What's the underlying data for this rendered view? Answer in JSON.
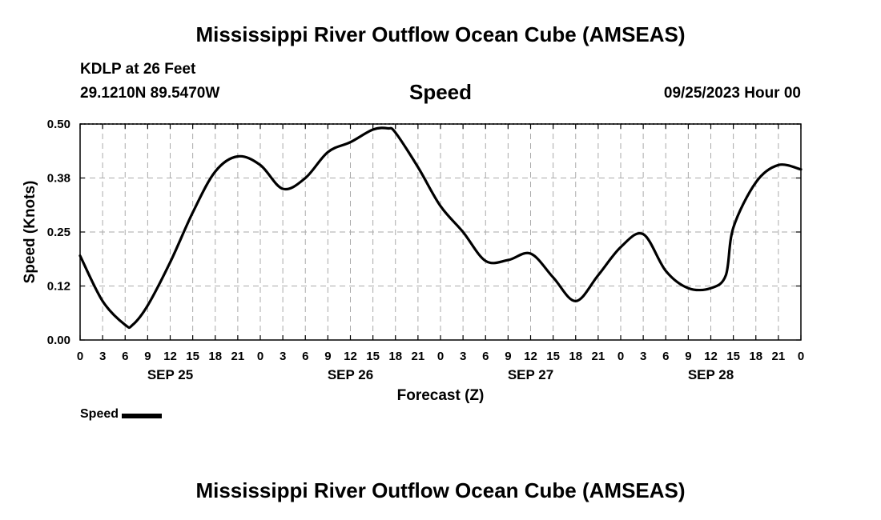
{
  "header": {
    "title": "Mississippi River Outflow Ocean Cube (AMSEAS)",
    "station": "KDLP at 26 Feet",
    "coords": "29.1210N  89.5470W",
    "subtitle": "Speed",
    "run_time": "09/25/2023 Hour 00"
  },
  "footer": {
    "title": "Mississippi River Outflow Ocean Cube (AMSEAS)"
  },
  "chart_data": {
    "type": "line",
    "title": "Speed",
    "xlabel": "Forecast (Z)",
    "ylabel": "Speed (Knots)",
    "xlim": [
      0,
      96
    ],
    "ylim": [
      0,
      0.5
    ],
    "y_ticks": [
      0.0,
      0.125,
      0.25,
      0.375,
      0.5
    ],
    "y_tick_labels": [
      "0.00",
      "0.12",
      "0.25",
      "0.38",
      "0.50"
    ],
    "x_tick_labels": [
      "0",
      "3",
      "6",
      "9",
      "12",
      "15",
      "18",
      "21",
      "0",
      "3",
      "6",
      "9",
      "12",
      "15",
      "18",
      "21",
      "0",
      "3",
      "6",
      "9",
      "12",
      "15",
      "18",
      "21",
      "0",
      "3",
      "6",
      "9",
      "12",
      "15",
      "18",
      "21",
      "0"
    ],
    "day_labels": [
      {
        "label": "SEP 25",
        "hour": 12
      },
      {
        "label": "SEP 26",
        "hour": 36
      },
      {
        "label": "SEP 27",
        "hour": 60
      },
      {
        "label": "SEP 28",
        "hour": 84
      }
    ],
    "grid": true,
    "legend": "bottom-left",
    "series": [
      {
        "name": "Speed",
        "color": "#000000",
        "x": [
          0,
          3,
          6,
          7,
          9,
          12,
          15,
          18,
          21,
          24,
          27,
          30,
          33,
          36,
          39,
          41,
          42,
          45,
          48,
          51,
          54,
          57,
          60,
          63,
          66,
          69,
          72,
          75,
          78,
          81,
          84,
          86,
          87,
          90,
          93,
          96
        ],
        "y": [
          0.195,
          0.09,
          0.035,
          0.035,
          0.08,
          0.18,
          0.295,
          0.39,
          0.425,
          0.405,
          0.35,
          0.375,
          0.435,
          0.458,
          0.487,
          0.49,
          0.48,
          0.4,
          0.31,
          0.25,
          0.183,
          0.185,
          0.2,
          0.145,
          0.09,
          0.15,
          0.215,
          0.245,
          0.16,
          0.12,
          0.12,
          0.15,
          0.26,
          0.365,
          0.405,
          0.395
        ]
      }
    ]
  }
}
